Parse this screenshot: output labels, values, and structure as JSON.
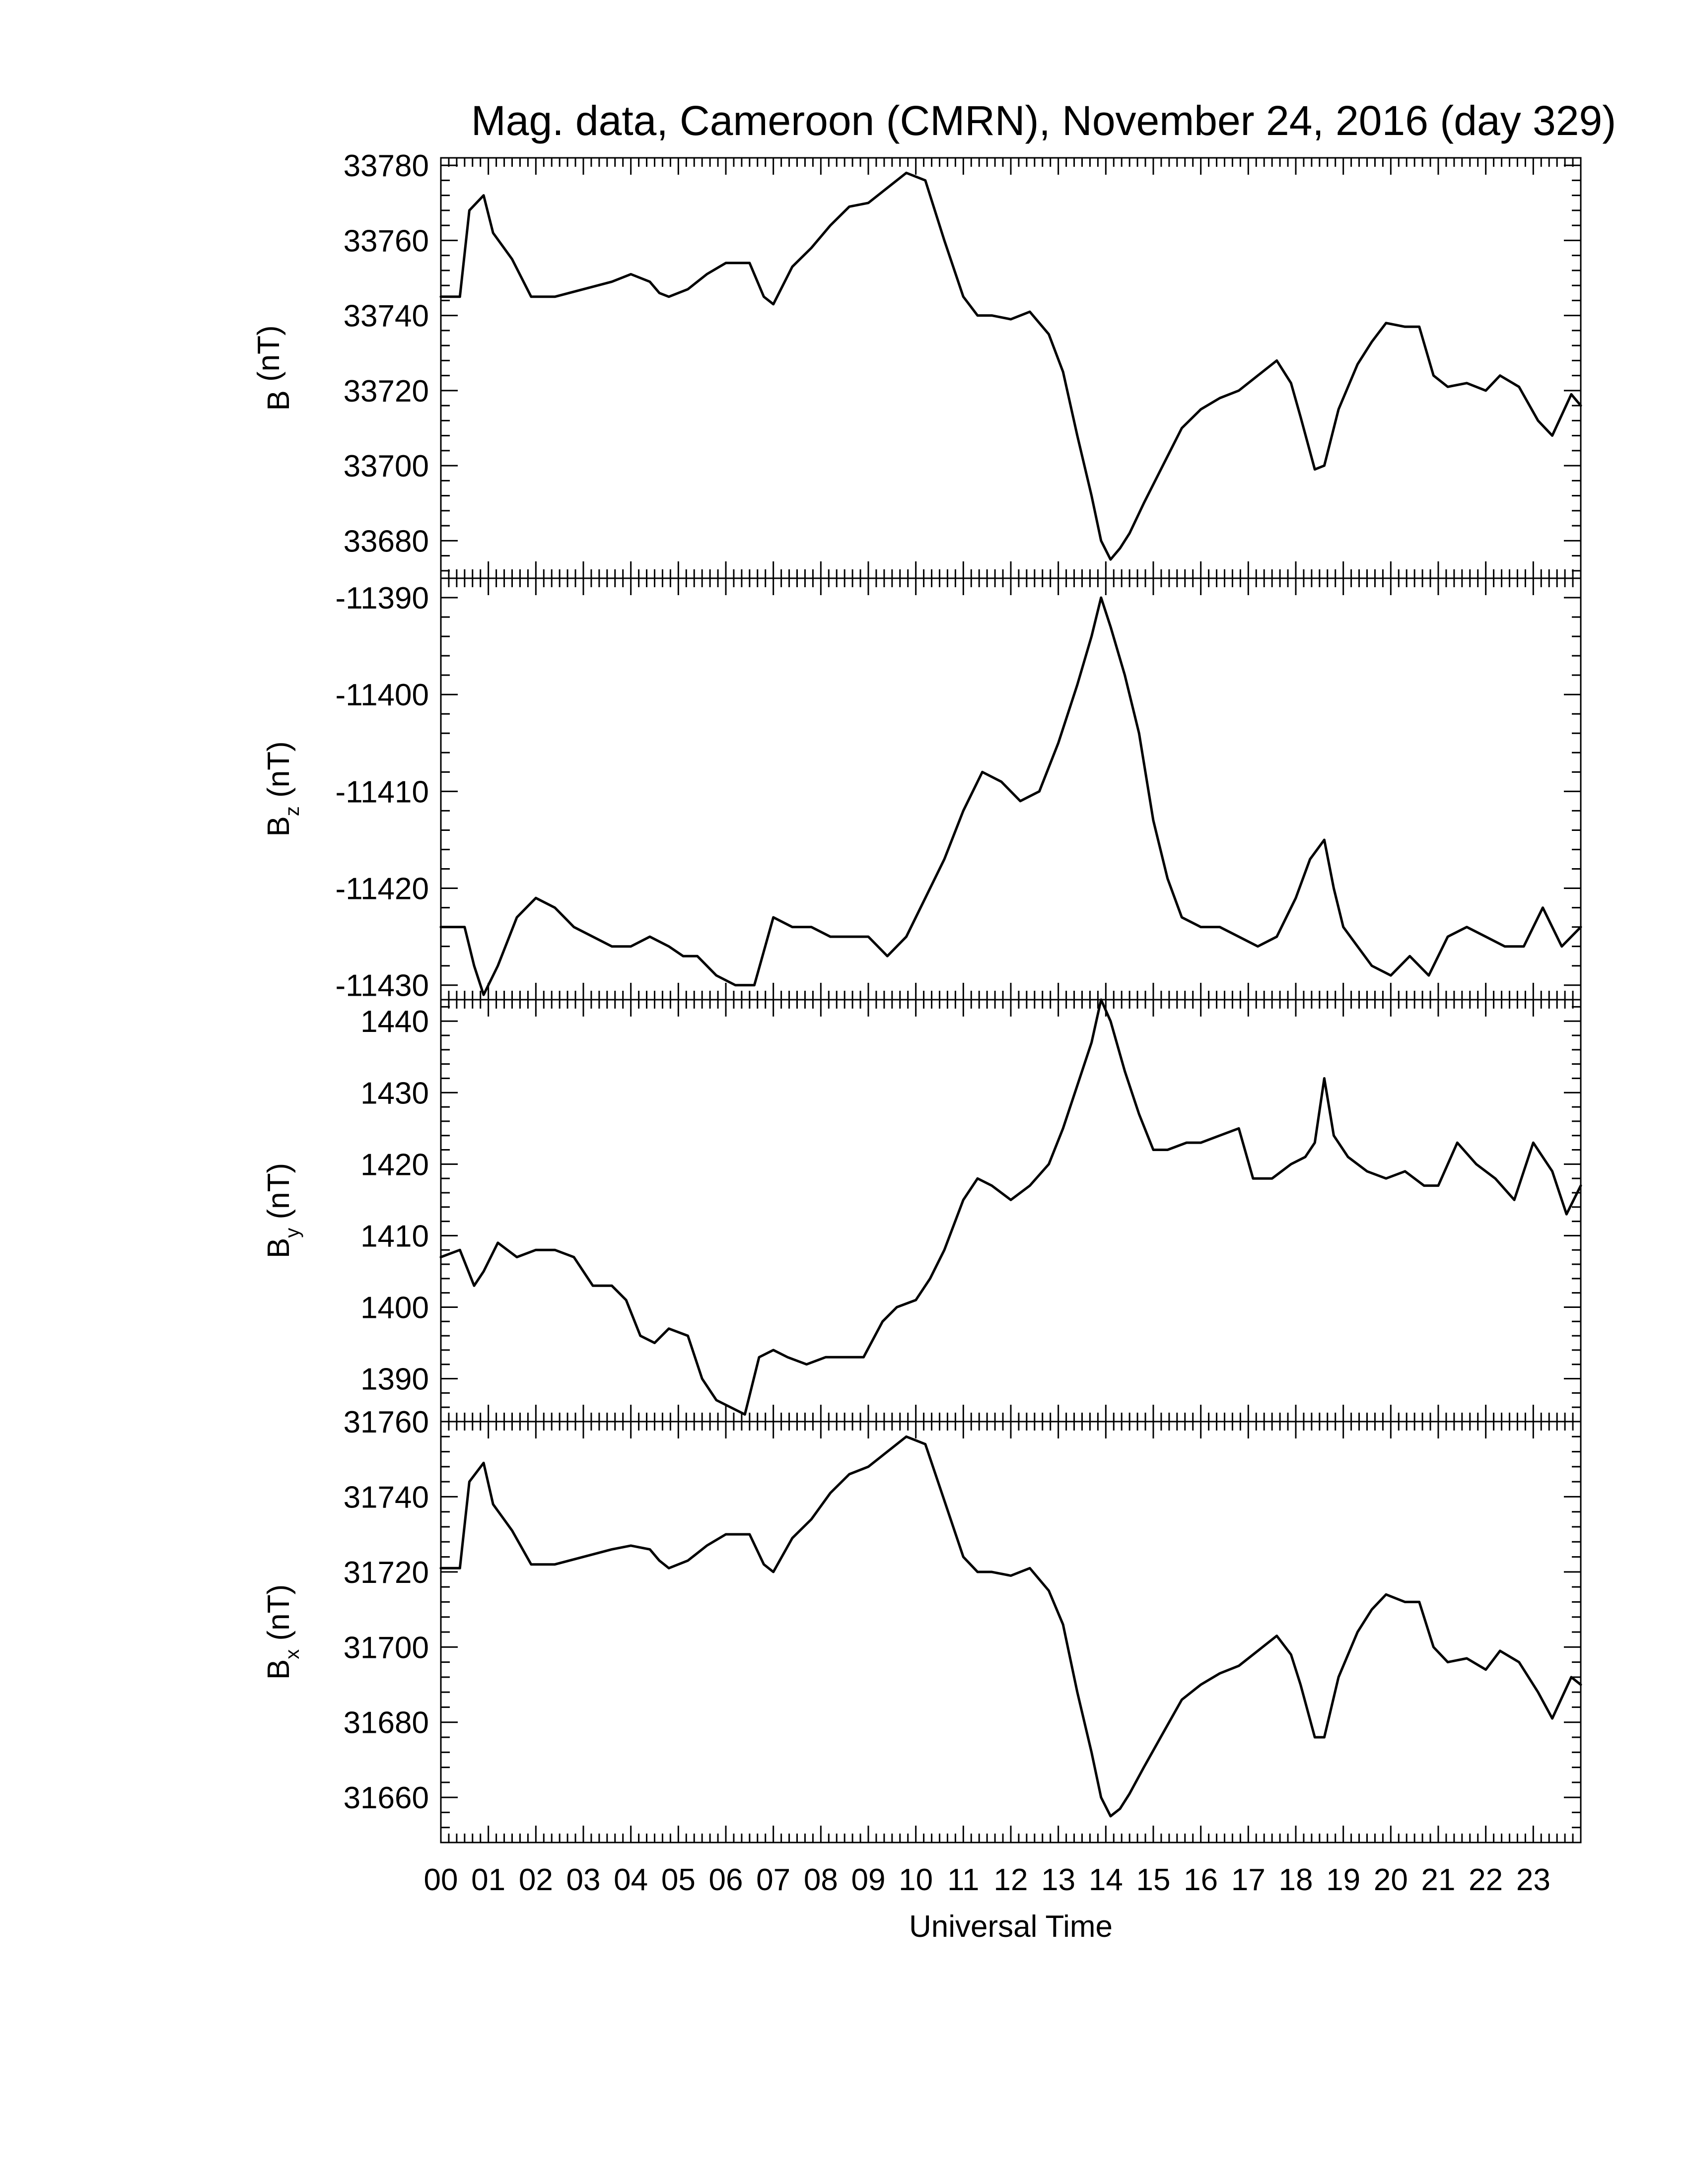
{
  "chart_data": {
    "type": "line",
    "title": "Mag. data, Cameroon (CMRN), November 24, 2016 (day 329)",
    "xlabel": "Universal Time",
    "x_tick_labels": [
      "00",
      "01",
      "02",
      "03",
      "04",
      "05",
      "06",
      "07",
      "08",
      "09",
      "10",
      "11",
      "12",
      "13",
      "14",
      "15",
      "16",
      "17",
      "18",
      "19",
      "20",
      "21",
      "22",
      "23"
    ],
    "xlim": [
      0,
      24
    ],
    "panels": [
      {
        "ylabel": "B (nT)",
        "ylabel_main": "B",
        "ylabel_sub": "",
        "ylabel_unit": " (nT)",
        "ylim": [
          33670,
          33782
        ],
        "y_ticks": [
          33680,
          33700,
          33720,
          33740,
          33760,
          33780
        ],
        "x": [
          0,
          0.4,
          0.6,
          0.9,
          1.1,
          1.5,
          1.9,
          2.4,
          3,
          3.6,
          4,
          4.4,
          4.6,
          4.8,
          5.2,
          5.6,
          6,
          6.5,
          6.8,
          7,
          7.4,
          7.8,
          8.2,
          8.6,
          9,
          9.4,
          9.8,
          10.2,
          10.6,
          11,
          11.3,
          11.6,
          12,
          12.4,
          12.8,
          13.1,
          13.4,
          13.7,
          13.9,
          14.1,
          14.3,
          14.5,
          14.8,
          15.2,
          15.6,
          16,
          16.4,
          16.8,
          17.2,
          17.6,
          17.9,
          18.1,
          18.4,
          18.6,
          18.9,
          19.3,
          19.6,
          19.9,
          20.3,
          20.6,
          20.9,
          21.2,
          21.6,
          22,
          22.3,
          22.7,
          23.1,
          23.4,
          23.8,
          24
        ],
        "y": [
          33745,
          33745,
          33768,
          33772,
          33762,
          33755,
          33745,
          33745,
          33747,
          33749,
          33751,
          33749,
          33746,
          33745,
          33747,
          33751,
          33754,
          33754,
          33745,
          33743,
          33753,
          33758,
          33764,
          33769,
          33770,
          33774,
          33778,
          33776,
          33760,
          33745,
          33740,
          33740,
          33739,
          33741,
          33735,
          33725,
          33708,
          33692,
          33680,
          33675,
          33678,
          33682,
          33690,
          33700,
          33710,
          33715,
          33718,
          33720,
          33724,
          33728,
          33722,
          33713,
          33699,
          33700,
          33715,
          33727,
          33733,
          33738,
          33737,
          33737,
          33724,
          33721,
          33722,
          33720,
          33724,
          33721,
          33712,
          33708,
          33719,
          33716
        ]
      },
      {
        "ylabel": "Bz (nT)",
        "ylabel_main": "B",
        "ylabel_sub": "z",
        "ylabel_unit": " (nT)",
        "ylim": [
          -11431.5,
          -11388
        ],
        "y_ticks": [
          -11430,
          -11420,
          -11410,
          -11400,
          -11390
        ],
        "x": [
          0,
          0.5,
          0.7,
          0.9,
          1.2,
          1.6,
          2,
          2.4,
          2.8,
          3.2,
          3.6,
          4,
          4.4,
          4.8,
          5.1,
          5.4,
          5.8,
          6.2,
          6.6,
          7,
          7.4,
          7.8,
          8.2,
          8.6,
          9,
          9.4,
          9.8,
          10.2,
          10.6,
          11,
          11.4,
          11.8,
          12.2,
          12.6,
          13,
          13.4,
          13.7,
          13.9,
          14.1,
          14.4,
          14.7,
          15,
          15.3,
          15.6,
          16,
          16.4,
          16.8,
          17.2,
          17.6,
          18,
          18.3,
          18.6,
          18.8,
          19,
          19.3,
          19.6,
          20,
          20.4,
          20.8,
          21.2,
          21.6,
          22,
          22.4,
          22.8,
          23.2,
          23.6,
          24
        ],
        "y": [
          -11424,
          -11424,
          -11428,
          -11431,
          -11428,
          -11423,
          -11421,
          -11422,
          -11424,
          -11425,
          -11426,
          -11426,
          -11425,
          -11426,
          -11427,
          -11427,
          -11429,
          -11430,
          -11430,
          -11423,
          -11424,
          -11424,
          -11425,
          -11425,
          -11425,
          -11427,
          -11425,
          -11421,
          -11417,
          -11412,
          -11408,
          -11409,
          -11411,
          -11410,
          -11405,
          -11399,
          -11394,
          -11390,
          -11393,
          -11398,
          -11404,
          -11413,
          -11419,
          -11423,
          -11424,
          -11424,
          -11425,
          -11426,
          -11425,
          -11421,
          -11417,
          -11415,
          -11420,
          -11424,
          -11426,
          -11428,
          -11429,
          -11427,
          -11429,
          -11425,
          -11424,
          -11425,
          -11426,
          -11426,
          -11422,
          -11426,
          -11424
        ]
      },
      {
        "ylabel": "By (nT)",
        "ylabel_main": "B",
        "ylabel_sub": "y",
        "ylabel_unit": " (nT)",
        "ylim": [
          1384,
          1443
        ],
        "y_ticks": [
          1390,
          1400,
          1410,
          1420,
          1430,
          1440
        ],
        "x": [
          0,
          0.4,
          0.7,
          0.9,
          1.2,
          1.6,
          2,
          2.4,
          2.8,
          3.2,
          3.6,
          3.9,
          4.2,
          4.5,
          4.8,
          5.2,
          5.5,
          5.8,
          6.1,
          6.4,
          6.7,
          7,
          7.3,
          7.7,
          8.1,
          8.5,
          8.9,
          9.3,
          9.6,
          10,
          10.3,
          10.6,
          11,
          11.3,
          11.6,
          12,
          12.4,
          12.8,
          13.1,
          13.4,
          13.7,
          13.9,
          14.1,
          14.4,
          14.7,
          15,
          15.3,
          15.7,
          16,
          16.4,
          16.8,
          17.1,
          17.5,
          17.9,
          18.2,
          18.4,
          18.6,
          18.8,
          19.1,
          19.5,
          19.9,
          20.3,
          20.7,
          21,
          21.4,
          21.8,
          22.2,
          22.6,
          23,
          23.4,
          23.7,
          24
        ],
        "y": [
          1407,
          1408,
          1403,
          1405,
          1409,
          1407,
          1408,
          1408,
          1407,
          1403,
          1403,
          1401,
          1396,
          1395,
          1397,
          1396,
          1390,
          1387,
          1386,
          1385,
          1393,
          1394,
          1393,
          1392,
          1393,
          1393,
          1393,
          1398,
          1400,
          1401,
          1404,
          1408,
          1415,
          1418,
          1417,
          1415,
          1417,
          1420,
          1425,
          1431,
          1437,
          1443,
          1440,
          1433,
          1427,
          1422,
          1422,
          1423,
          1423,
          1424,
          1425,
          1418,
          1418,
          1420,
          1421,
          1423,
          1432,
          1424,
          1421,
          1419,
          1418,
          1419,
          1417,
          1417,
          1423,
          1420,
          1418,
          1415,
          1423,
          1419,
          1413,
          1417
        ]
      },
      {
        "ylabel": "Bx (nT)",
        "ylabel_main": "B",
        "ylabel_sub": "x",
        "ylabel_unit": " (nT)",
        "ylim": [
          31648,
          31760
        ],
        "y_ticks": [
          31660,
          31680,
          31700,
          31720,
          31740,
          31760
        ],
        "x": [
          0,
          0.4,
          0.6,
          0.9,
          1.1,
          1.5,
          1.9,
          2.4,
          3,
          3.6,
          4,
          4.4,
          4.6,
          4.8,
          5.2,
          5.6,
          6,
          6.5,
          6.8,
          7,
          7.4,
          7.8,
          8.2,
          8.6,
          9,
          9.4,
          9.8,
          10.2,
          10.6,
          11,
          11.3,
          11.6,
          12,
          12.4,
          12.8,
          13.1,
          13.4,
          13.7,
          13.9,
          14.1,
          14.3,
          14.5,
          14.8,
          15.2,
          15.6,
          16,
          16.4,
          16.8,
          17.2,
          17.6,
          17.9,
          18.1,
          18.4,
          18.6,
          18.9,
          19.3,
          19.6,
          19.9,
          20.3,
          20.6,
          20.9,
          21.2,
          21.6,
          22,
          22.3,
          22.7,
          23.1,
          23.4,
          23.8,
          24
        ],
        "y": [
          31721,
          31721,
          31744,
          31749,
          31738,
          31731,
          31722,
          31722,
          31724,
          31726,
          31727,
          31726,
          31723,
          31721,
          31723,
          31727,
          31730,
          31730,
          31722,
          31720,
          31729,
          31734,
          31741,
          31746,
          31748,
          31752,
          31756,
          31754,
          31739,
          31724,
          31720,
          31720,
          31719,
          31721,
          31715,
          31706,
          31688,
          31672,
          31660,
          31655,
          31657,
          31661,
          31668,
          31677,
          31686,
          31690,
          31693,
          31695,
          31699,
          31703,
          31698,
          31690,
          31676,
          31676,
          31692,
          31704,
          31710,
          31714,
          31712,
          31712,
          31700,
          31696,
          31697,
          31694,
          31699,
          31696,
          31688,
          31681,
          31692,
          31690
        ]
      }
    ]
  }
}
